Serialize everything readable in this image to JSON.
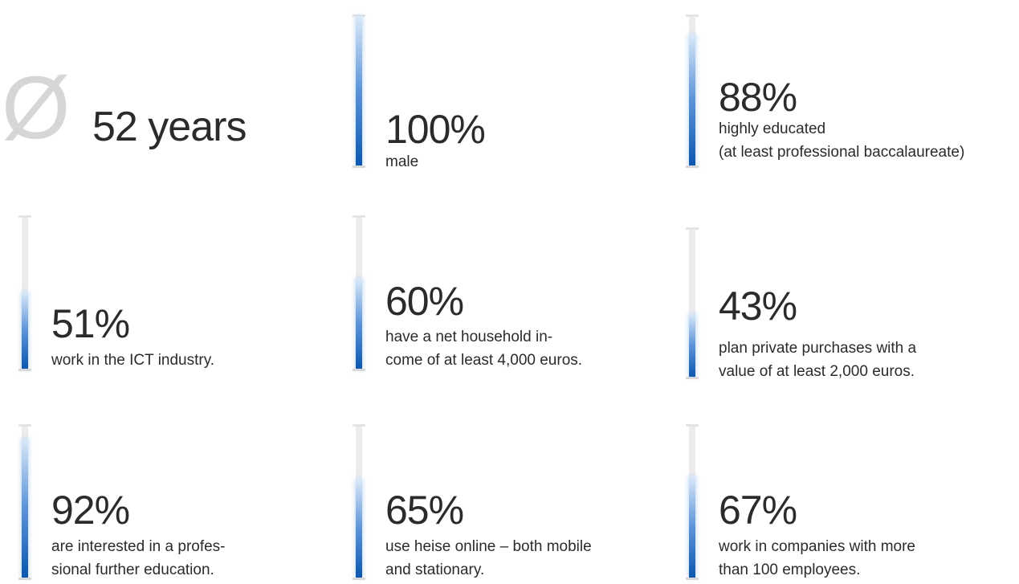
{
  "intro": {
    "symbol": "Ø",
    "stat": "52 years"
  },
  "items": [
    {
      "value": 100,
      "value_label": "100%",
      "lines": [
        "male"
      ]
    },
    {
      "value": 88,
      "value_label": "88%",
      "lines": [
        "highly educated",
        "(at least professional baccalaureate)"
      ]
    },
    {
      "value": 51,
      "value_label": "51%",
      "lines": [
        "work in the ICT industry."
      ]
    },
    {
      "value": 60,
      "value_label": "60%",
      "lines": [
        "have a net household in-",
        "come of at least 4,000 euros."
      ]
    },
    {
      "value": 43,
      "value_label": "43%",
      "lines": [
        "plan private purchases with a",
        "value of at least 2,000 euros."
      ]
    },
    {
      "value": 92,
      "value_label": "92%",
      "lines": [
        "are interested in a profes-",
        "sional further education."
      ]
    },
    {
      "value": 65,
      "value_label": "65%",
      "lines": [
        "use heise online – both mobile",
        "and stationary."
      ]
    },
    {
      "value": 67,
      "value_label": "67%",
      "lines": [
        "work in companies with more",
        "than 100 employees."
      ]
    }
  ]
}
